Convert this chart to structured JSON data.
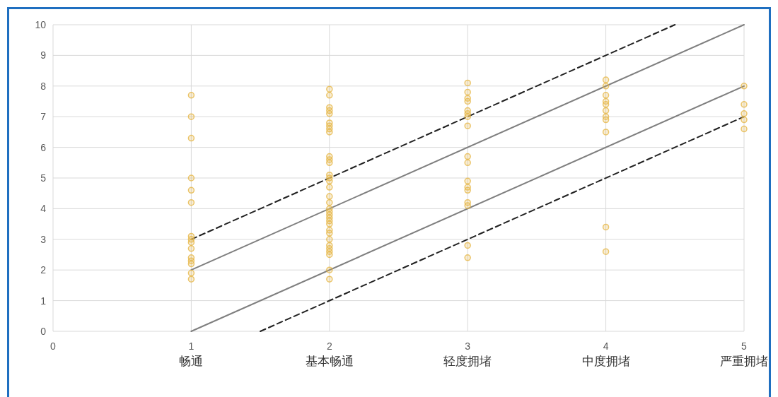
{
  "chart_data": {
    "type": "scatter",
    "xlim": [
      0,
      5
    ],
    "ylim": [
      0,
      10
    ],
    "xticks": [
      0,
      {
        "value": 1,
        "label": "1\n畅通"
      },
      {
        "value": 2,
        "label": "2\n基本畅通"
      },
      {
        "value": 3,
        "label": "3\n轻度拥堵"
      },
      {
        "value": 4,
        "label": "4\n中度拥堵"
      },
      {
        "value": 5,
        "label": "5\n严重拥堵"
      }
    ],
    "yticks": [
      0,
      1,
      2,
      3,
      4,
      5,
      6,
      7,
      8,
      9,
      10
    ],
    "grid": true,
    "marker": "circle",
    "series": [
      {
        "color": "#e6b84a",
        "x": [
          1,
          1,
          1,
          1,
          1,
          1,
          1,
          1,
          1,
          1,
          1,
          1,
          1,
          1,
          1
        ],
        "values": [
          7.7,
          7.0,
          6.3,
          5.0,
          4.6,
          4.2,
          3.1,
          3.0,
          2.9,
          2.7,
          2.4,
          2.3,
          2.2,
          1.9,
          1.7
        ]
      },
      {
        "color": "#e6b84a",
        "x": [
          2,
          2,
          2,
          2,
          2,
          2,
          2,
          2,
          2,
          2,
          2,
          2,
          2,
          2,
          2,
          2,
          2,
          2,
          2,
          2,
          2,
          2,
          2,
          2,
          2,
          2,
          2,
          2,
          2,
          2,
          2,
          2,
          2
        ],
        "values": [
          7.9,
          7.7,
          7.3,
          7.2,
          7.1,
          6.8,
          6.7,
          6.6,
          6.5,
          5.7,
          5.6,
          5.5,
          5.1,
          5.0,
          4.9,
          4.7,
          4.4,
          4.2,
          4.0,
          3.9,
          3.8,
          3.7,
          3.6,
          3.5,
          3.3,
          3.2,
          3.0,
          2.8,
          2.7,
          2.6,
          2.5,
          2.0,
          1.7
        ]
      },
      {
        "color": "#e6b84a",
        "x": [
          3,
          3,
          3,
          3,
          3,
          3,
          3,
          3,
          3,
          3,
          3,
          3,
          3,
          3,
          3,
          3,
          3
        ],
        "values": [
          8.1,
          7.8,
          7.6,
          7.5,
          7.2,
          7.1,
          7.0,
          6.7,
          5.7,
          5.5,
          4.9,
          4.7,
          4.6,
          4.2,
          4.1,
          2.8,
          2.4
        ]
      },
      {
        "color": "#e6b84a",
        "x": [
          4,
          4,
          4,
          4,
          4,
          4,
          4,
          4,
          4,
          4,
          4
        ],
        "values": [
          8.2,
          8.0,
          7.7,
          7.5,
          7.4,
          7.2,
          7.0,
          6.9,
          6.5,
          3.4,
          2.6
        ]
      },
      {
        "color": "#e6b84a",
        "x": [
          5,
          5,
          5,
          5,
          5
        ],
        "values": [
          8.0,
          7.4,
          7.1,
          6.9,
          6.6
        ]
      },
      {
        "type": "line",
        "color": "#7f7f7f",
        "line_style": "solid",
        "marker": "none",
        "x": [
          1,
          5
        ],
        "values": [
          2,
          10
        ]
      },
      {
        "type": "line",
        "color": "#7f7f7f",
        "line_style": "solid",
        "marker": "none",
        "x": [
          1,
          5
        ],
        "values": [
          0,
          8
        ]
      },
      {
        "type": "line",
        "color": "#222222",
        "line_style": "dashed",
        "marker": "none",
        "x": [
          1,
          4.5
        ],
        "values": [
          3,
          10
        ]
      },
      {
        "type": "line",
        "color": "#222222",
        "line_style": "dashed",
        "marker": "none",
        "x": [
          1.5,
          5
        ],
        "values": [
          0,
          7
        ]
      }
    ]
  }
}
